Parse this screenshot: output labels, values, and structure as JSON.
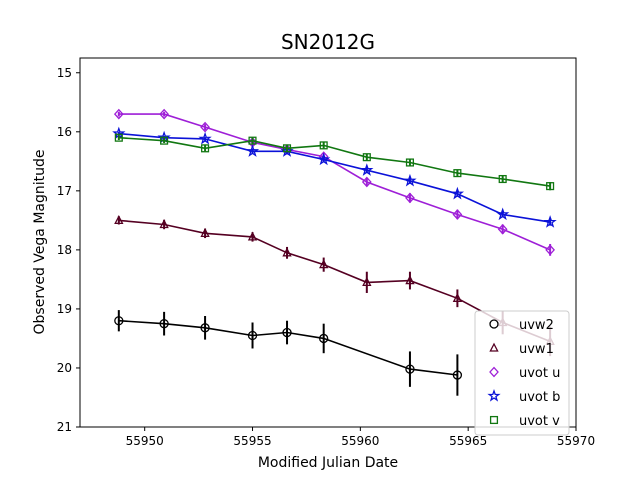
{
  "chart_data": {
    "type": "scatter",
    "title": "SN2012G",
    "xlabel": "Modified Julian Date",
    "ylabel": "Observed Vega Magnitude",
    "xlim": [
      55947,
      55970
    ],
    "ylim": [
      21,
      14.75
    ],
    "y_inverted": true,
    "x_ticks": [
      55950,
      55955,
      55960,
      55965,
      55970
    ],
    "y_ticks": [
      15,
      16,
      17,
      18,
      19,
      20,
      21
    ],
    "grid": false,
    "legend_position": "lower-right",
    "series": [
      {
        "name": "uvw2",
        "color": "#000000",
        "marker": "circle",
        "x": [
          55948.8,
          55950.9,
          55952.8,
          55955.0,
          55956.6,
          55958.3,
          55962.3,
          55964.5
        ],
        "y": [
          19.2,
          19.25,
          19.32,
          19.45,
          19.4,
          19.5,
          20.02,
          20.12
        ],
        "yerr": [
          0.18,
          0.2,
          0.2,
          0.22,
          0.2,
          0.25,
          0.3,
          0.35
        ]
      },
      {
        "name": "uvw1",
        "color": "#550022",
        "marker": "triangle",
        "x": [
          55948.8,
          55950.9,
          55952.8,
          55955.0,
          55956.6,
          55958.3,
          55960.3,
          55962.3,
          55964.5,
          55966.6,
          55968.8
        ],
        "y": [
          17.5,
          17.57,
          17.72,
          17.78,
          18.05,
          18.25,
          18.55,
          18.52,
          18.82,
          19.23,
          19.55
        ],
        "yerr": [
          0.07,
          0.08,
          0.08,
          0.08,
          0.1,
          0.12,
          0.18,
          0.15,
          0.15,
          0.2,
          0.25
        ]
      },
      {
        "name": "uvot u",
        "color": "#9e1fd7",
        "marker": "diamond",
        "x": [
          55948.8,
          55950.9,
          55952.8,
          55955.0,
          55956.6,
          55958.3,
          55960.3,
          55962.3,
          55964.5,
          55966.6,
          55968.8
        ],
        "y": [
          15.7,
          15.7,
          15.92,
          16.18,
          16.3,
          16.42,
          16.85,
          17.12,
          17.4,
          17.65,
          18.0
        ],
        "yerr": [
          0.04,
          0.04,
          0.05,
          0.05,
          0.05,
          0.06,
          0.07,
          0.08,
          0.08,
          0.08,
          0.1
        ]
      },
      {
        "name": "uvot b",
        "color": "#0b12d8",
        "marker": "star",
        "x": [
          55948.8,
          55950.9,
          55952.8,
          55955.0,
          55956.6,
          55958.3,
          55960.3,
          55962.3,
          55964.5,
          55966.6,
          55968.8
        ],
        "y": [
          16.03,
          16.1,
          16.12,
          16.33,
          16.33,
          16.47,
          16.65,
          16.83,
          17.05,
          17.4,
          17.53
        ],
        "yerr": [
          0.03,
          0.03,
          0.03,
          0.04,
          0.04,
          0.04,
          0.05,
          0.05,
          0.05,
          0.05,
          0.06
        ]
      },
      {
        "name": "uvot v",
        "color": "#117711",
        "marker": "square",
        "x": [
          55948.8,
          55950.9,
          55952.8,
          55955.0,
          55956.6,
          55958.3,
          55960.3,
          55962.3,
          55964.5,
          55966.6,
          55968.8
        ],
        "y": [
          16.1,
          16.15,
          16.28,
          16.15,
          16.28,
          16.23,
          16.43,
          16.52,
          16.7,
          16.8,
          16.92
        ],
        "yerr": [
          0.04,
          0.04,
          0.05,
          0.05,
          0.05,
          0.05,
          0.06,
          0.06,
          0.06,
          0.06,
          0.07
        ]
      }
    ]
  }
}
